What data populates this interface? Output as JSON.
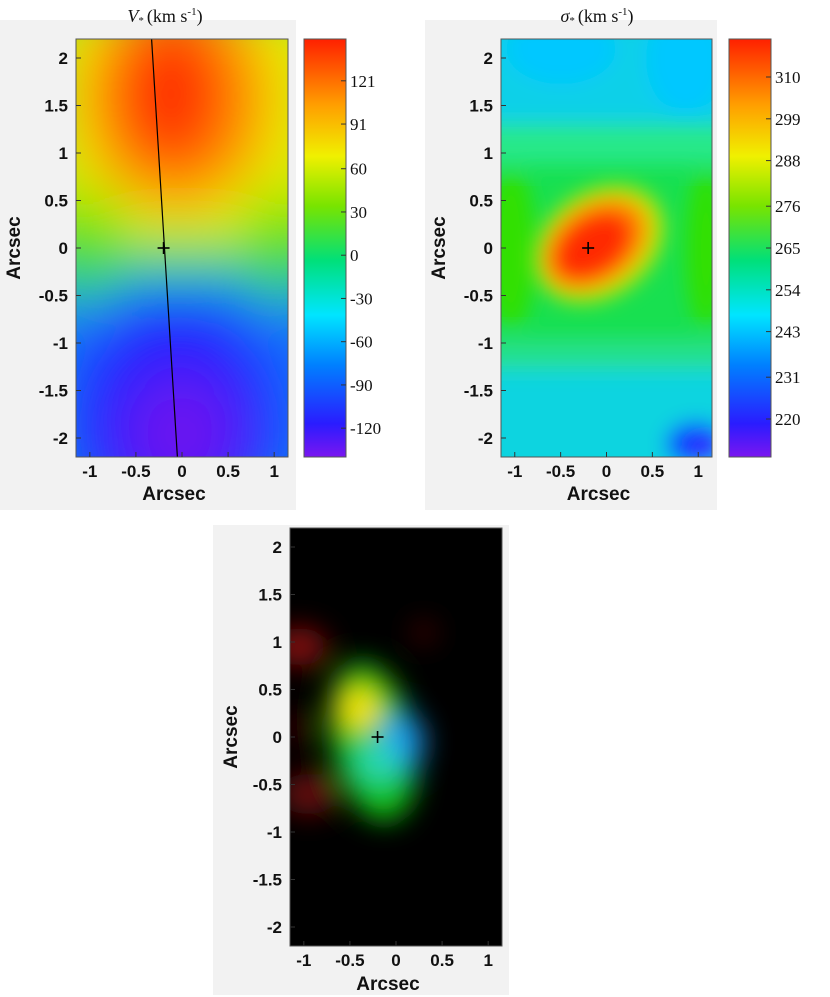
{
  "chart_data": [
    {
      "id": "velocity",
      "type": "heatmap",
      "title_symbol": "V",
      "title_symbol_sub": "*",
      "title_unit": "(km s",
      "title_unit_exp": "-1",
      "title_unit_close": ")",
      "xlabel": "Arcsec",
      "ylabel": "Arcsec",
      "xlim": [
        -1.15,
        1.15
      ],
      "ylim": [
        -2.2,
        2.2
      ],
      "xticks": [
        -1,
        -0.5,
        0,
        0.5,
        1
      ],
      "xtick_labels": [
        "-1",
        "-0.5",
        "0",
        "0.5",
        "1"
      ],
      "yticks": [
        2,
        1.5,
        1,
        0.5,
        0,
        -0.5,
        -1,
        -1.5,
        -2
      ],
      "ytick_labels": [
        "2",
        "1.5",
        "1",
        "0.5",
        "0",
        "-0.5",
        "-1",
        "-1.5",
        "-2"
      ],
      "colormap": "jet",
      "colorbar_range": [
        -140,
        150
      ],
      "colorbar_ticks": [
        121,
        91,
        60,
        30,
        0,
        -30,
        -60,
        -90,
        -120
      ],
      "colorbar_tick_labels": [
        "121",
        "91",
        "60",
        "30",
        "0",
        "-30",
        "-60",
        "-90",
        "-120"
      ],
      "marker": {
        "x": -0.2,
        "y": 0.0
      },
      "kinematic_axis": {
        "x1": -0.33,
        "y1": 2.2,
        "x2": -0.05,
        "y2": -2.2
      },
      "value_range_shown": [
        -140,
        140
      ]
    },
    {
      "id": "dispersion",
      "type": "heatmap",
      "title_symbol": "σ",
      "title_symbol_sub": "*",
      "title_unit": "(km s",
      "title_unit_exp": "-1",
      "title_unit_close": ")",
      "xlabel": "Arcsec",
      "ylabel": "Arcsec",
      "xlim": [
        -1.15,
        1.15
      ],
      "ylim": [
        -2.2,
        2.2
      ],
      "xticks": [
        -1,
        -0.5,
        0,
        0.5,
        1
      ],
      "xtick_labels": [
        "-1",
        "-0.5",
        "0",
        "0.5",
        "1"
      ],
      "yticks": [
        2,
        1.5,
        1,
        0.5,
        0,
        -0.5,
        -1,
        -1.5,
        -2
      ],
      "ytick_labels": [
        "2",
        "1.5",
        "1",
        "0.5",
        "0",
        "-0.5",
        "-1",
        "-1.5",
        "-2"
      ],
      "colormap": "jet",
      "colorbar_range": [
        210,
        320
      ],
      "colorbar_ticks": [
        310,
        299,
        288,
        276,
        265,
        254,
        243,
        231,
        220
      ],
      "colorbar_tick_labels": [
        "310",
        "299",
        "288",
        "276",
        "265",
        "254",
        "243",
        "231",
        "220"
      ],
      "marker": {
        "x": -0.2,
        "y": 0.0
      },
      "peak_value": 318
    },
    {
      "id": "composite",
      "type": "heatmap",
      "xlabel": "Arcsec",
      "ylabel": "Arcsec",
      "xlim": [
        -1.15,
        1.15
      ],
      "ylim": [
        -2.2,
        2.2
      ],
      "xticks": [
        -1,
        -0.5,
        0,
        0.5,
        1
      ],
      "xtick_labels": [
        "-1",
        "-0.5",
        "0",
        "0.5",
        "1"
      ],
      "yticks": [
        2,
        1.5,
        1,
        0.5,
        0,
        -0.5,
        -1,
        -1.5,
        -2
      ],
      "ytick_labels": [
        "2",
        "1.5",
        "1",
        "0.5",
        "0",
        "-0.5",
        "-1",
        "-1.5",
        "-2"
      ],
      "background": "#000000",
      "marker": {
        "x": -0.2,
        "y": 0.0
      },
      "components": [
        {
          "color": "#18c418",
          "shape": "ellipse",
          "center": [
            -0.25,
            -0.05
          ],
          "semi_axes": [
            0.45,
            0.85
          ]
        },
        {
          "color": "#ffe400",
          "shape": "blob",
          "center": [
            -0.4,
            0.3
          ],
          "size": [
            0.22,
            0.22
          ]
        },
        {
          "color": "#1e9df0",
          "shape": "blob",
          "center": [
            0.05,
            -0.05
          ],
          "size": [
            0.25,
            0.3
          ]
        },
        {
          "color": "#2fd9b8",
          "shape": "blob",
          "center": [
            -0.2,
            -0.25
          ],
          "size": [
            0.22,
            0.22
          ]
        },
        {
          "color": "#8a0f0f",
          "shape": "blob",
          "center": [
            -1.05,
            0.95
          ],
          "size": [
            0.3,
            0.2
          ]
        },
        {
          "color": "#6a0c0c",
          "shape": "blob",
          "center": [
            -0.95,
            -0.6
          ],
          "size": [
            0.3,
            0.22
          ]
        },
        {
          "color": "#5a0808",
          "shape": "blob",
          "center": [
            0.3,
            1.1
          ],
          "size": [
            0.12,
            0.1
          ]
        },
        {
          "color": "#4a0606",
          "shape": "blob",
          "center": [
            -1.05,
            0.1
          ],
          "size": [
            0.12,
            0.18
          ]
        }
      ]
    }
  ]
}
